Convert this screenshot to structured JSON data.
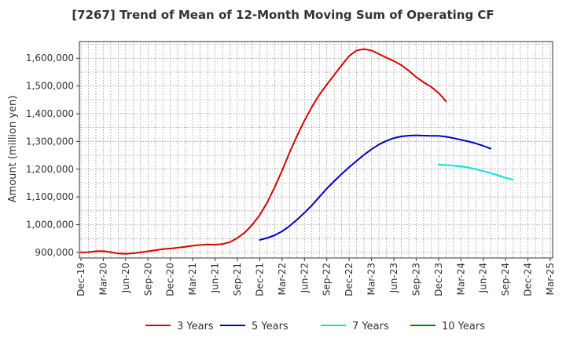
{
  "chart_data": {
    "type": "line",
    "title": "[7267]  Trend of Mean of 12-Month Moving Sum of Operating CF",
    "xlabel": "",
    "ylabel": "Amount (million yen)",
    "x_ticks": [
      "Dec-19",
      "Mar-20",
      "Jun-20",
      "Sep-20",
      "Dec-20",
      "Mar-21",
      "Jun-21",
      "Sep-21",
      "Dec-21",
      "Mar-22",
      "Jun-22",
      "Sep-22",
      "Dec-22",
      "Mar-23",
      "Jun-23",
      "Sep-23",
      "Dec-23",
      "Mar-24",
      "Jun-24",
      "Sep-24",
      "Dec-24",
      "Mar-25"
    ],
    "y_ticks": [
      900000,
      1000000,
      1100000,
      1200000,
      1300000,
      1400000,
      1500000,
      1600000
    ],
    "y_tick_labels": [
      "900,000",
      "1,000,000",
      "1,100,000",
      "1,200,000",
      "1,300,000",
      "1,400,000",
      "1,500,000",
      "1,600,000"
    ],
    "ylim": [
      880000,
      1660000
    ],
    "grid": true,
    "legend_position": "bottom",
    "series": [
      {
        "name": "3 Years",
        "color": "#dd0000",
        "start_index": 0,
        "values": [
          900000,
          901000,
          904000,
          905000,
          901000,
          896000,
          895000,
          897000,
          900000,
          904000,
          908000,
          912000,
          914000,
          917000,
          920000,
          924000,
          927000,
          929000,
          928000,
          930000,
          937000,
          952000,
          972000,
          1000000,
          1035000,
          1080000,
          1135000,
          1195000,
          1260000,
          1320000,
          1375000,
          1425000,
          1468000,
          1505000,
          1540000,
          1575000,
          1608000,
          1628000,
          1633000,
          1628000,
          1615000,
          1602000,
          1590000,
          1575000,
          1555000,
          1532000,
          1513000,
          1497000,
          1475000,
          1445000
        ]
      },
      {
        "name": "5 Years",
        "color": "#0000cc",
        "start_index": 24,
        "values": [
          945000,
          952000,
          962000,
          976000,
          995000,
          1018000,
          1043000,
          1070000,
          1100000,
          1130000,
          1157000,
          1183000,
          1207000,
          1230000,
          1252000,
          1272000,
          1289000,
          1302000,
          1312000,
          1318000,
          1321000,
          1322000,
          1321000,
          1320000,
          1320000,
          1317000,
          1312000,
          1306000,
          1300000,
          1293000,
          1284000,
          1274000
        ]
      },
      {
        "name": "7 Years",
        "color": "#00e5e5",
        "start_index": 48,
        "values": [
          1217000,
          1215000,
          1213000,
          1210000,
          1206000,
          1200000,
          1193000,
          1186000,
          1178000,
          1169000,
          1162000
        ]
      },
      {
        "name": "10 Years",
        "color": "#008000",
        "start_index": 0,
        "values": []
      }
    ]
  }
}
